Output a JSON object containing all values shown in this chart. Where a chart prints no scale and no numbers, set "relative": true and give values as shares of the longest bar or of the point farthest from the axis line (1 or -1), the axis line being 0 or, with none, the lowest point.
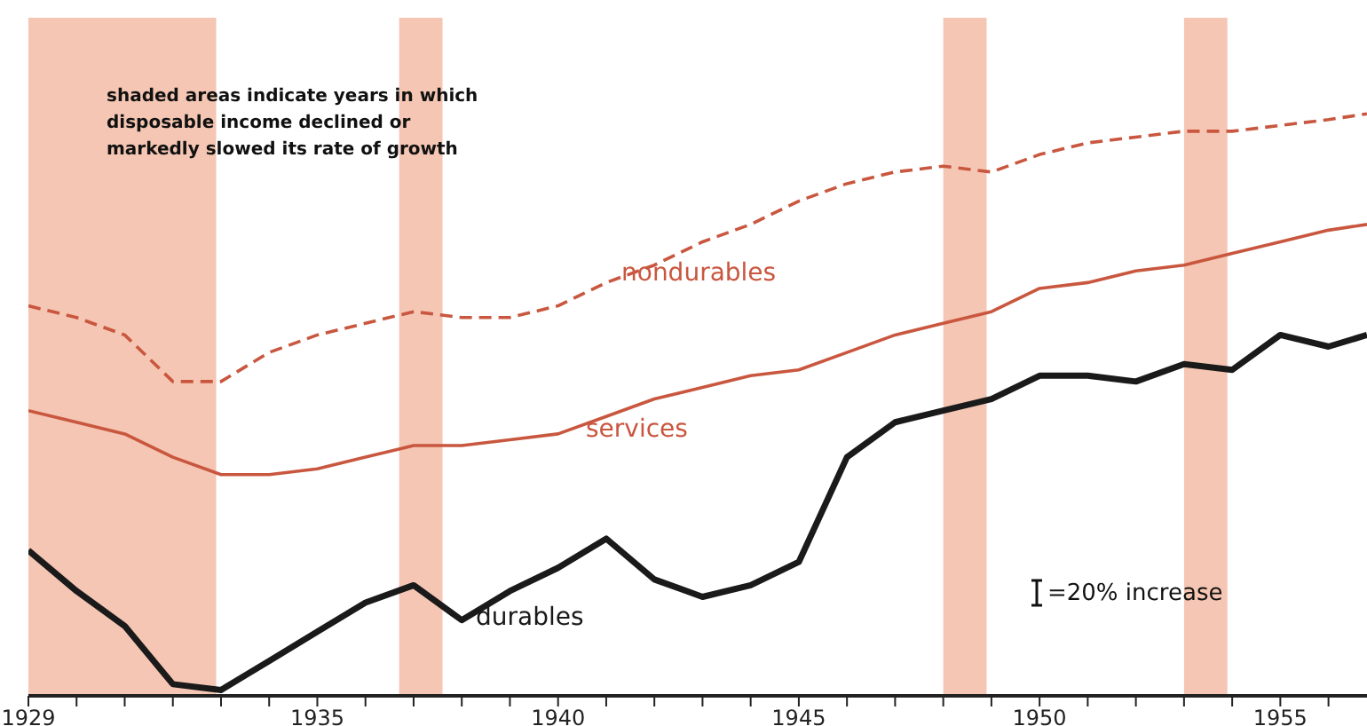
{
  "chart_data": {
    "type": "line",
    "relative": true,
    "grid": false,
    "legend": false,
    "marker": "none",
    "x": [
      1929,
      1930,
      1931,
      1932,
      1933,
      1934,
      1935,
      1936,
      1937,
      1938,
      1939,
      1940,
      1941,
      1942,
      1943,
      1944,
      1945,
      1946,
      1947,
      1948,
      1949,
      1950,
      1951,
      1952,
      1953,
      1954,
      1955,
      1956,
      1956.8
    ],
    "xlim": [
      1929,
      1956.8
    ],
    "xticks": [
      1929,
      {
        "value": 1930,
        "label": null
      },
      {
        "value": 1931,
        "label": null
      },
      {
        "value": 1932,
        "label": null
      },
      {
        "value": 1933,
        "label": null
      },
      {
        "value": 1934,
        "label": null
      },
      1935,
      {
        "value": 1936,
        "label": null
      },
      {
        "value": 1937,
        "label": null
      },
      {
        "value": 1938,
        "label": null
      },
      {
        "value": 1939,
        "label": null
      },
      1940,
      {
        "value": 1941,
        "label": null
      },
      {
        "value": 1942,
        "label": null
      },
      {
        "value": 1943,
        "label": null
      },
      {
        "value": 1944,
        "label": null
      },
      1945,
      {
        "value": 1946,
        "label": null
      },
      {
        "value": 1947,
        "label": null
      },
      {
        "value": 1948,
        "label": null
      },
      {
        "value": 1949,
        "label": null
      },
      1950,
      {
        "value": 1951,
        "label": null
      },
      {
        "value": 1952,
        "label": null
      },
      {
        "value": 1953,
        "label": null
      },
      {
        "value": 1954,
        "label": null
      },
      1955,
      {
        "value": 1956,
        "label": null
      }
    ],
    "tick_labels": "x",
    "series": [
      {
        "name": "nondurables",
        "color": "#c9573f",
        "line_style": "dashed",
        "values": [
          0.67,
          0.65,
          0.62,
          0.54,
          0.54,
          0.59,
          0.62,
          0.64,
          0.66,
          0.65,
          0.65,
          0.67,
          0.71,
          0.74,
          0.78,
          0.81,
          0.85,
          0.88,
          0.9,
          0.91,
          0.9,
          0.93,
          0.95,
          0.96,
          0.97,
          0.97,
          0.98,
          0.99,
          1
        ]
      },
      {
        "name": "services",
        "color": "#c9573f",
        "line_style": "solid",
        "values": [
          0.49,
          0.47,
          0.45,
          0.41,
          0.38,
          0.38,
          0.39,
          0.41,
          0.43,
          0.43,
          0.44,
          0.45,
          0.48,
          0.51,
          0.53,
          0.55,
          0.56,
          0.59,
          0.62,
          0.64,
          0.66,
          0.7,
          0.71,
          0.73,
          0.74,
          0.76,
          0.78,
          0.8,
          0.81
        ]
      },
      {
        "name": "durables",
        "color": "#1a1a1a",
        "line_style": "solid",
        "values": [
          0.25,
          0.18,
          0.12,
          0.02,
          0.01,
          0.06,
          0.11,
          0.16,
          0.19,
          0.13,
          0.18,
          0.22,
          0.27,
          0.2,
          0.17,
          0.19,
          0.23,
          0.41,
          0.47,
          0.49,
          0.51,
          0.55,
          0.55,
          0.54,
          0.57,
          0.56,
          0.62,
          0.6,
          0.62
        ]
      }
    ],
    "bands": [
      {
        "axis": "x",
        "from": 1929,
        "to": 1932.9,
        "color": "#f5c6b3"
      },
      {
        "axis": "x",
        "from": 1936.7,
        "to": 1937.6,
        "color": "#f5c6b3"
      },
      {
        "axis": "x",
        "from": 1948,
        "to": 1948.9,
        "color": "#f5c6b3"
      },
      {
        "axis": "x",
        "from": 1953,
        "to": 1953.9,
        "color": "#f5c6b3"
      }
    ],
    "annotations": [
      "shaded areas indicate years in which disposable income declined or markedly slowed its rate of growth",
      "=20% increase"
    ]
  }
}
